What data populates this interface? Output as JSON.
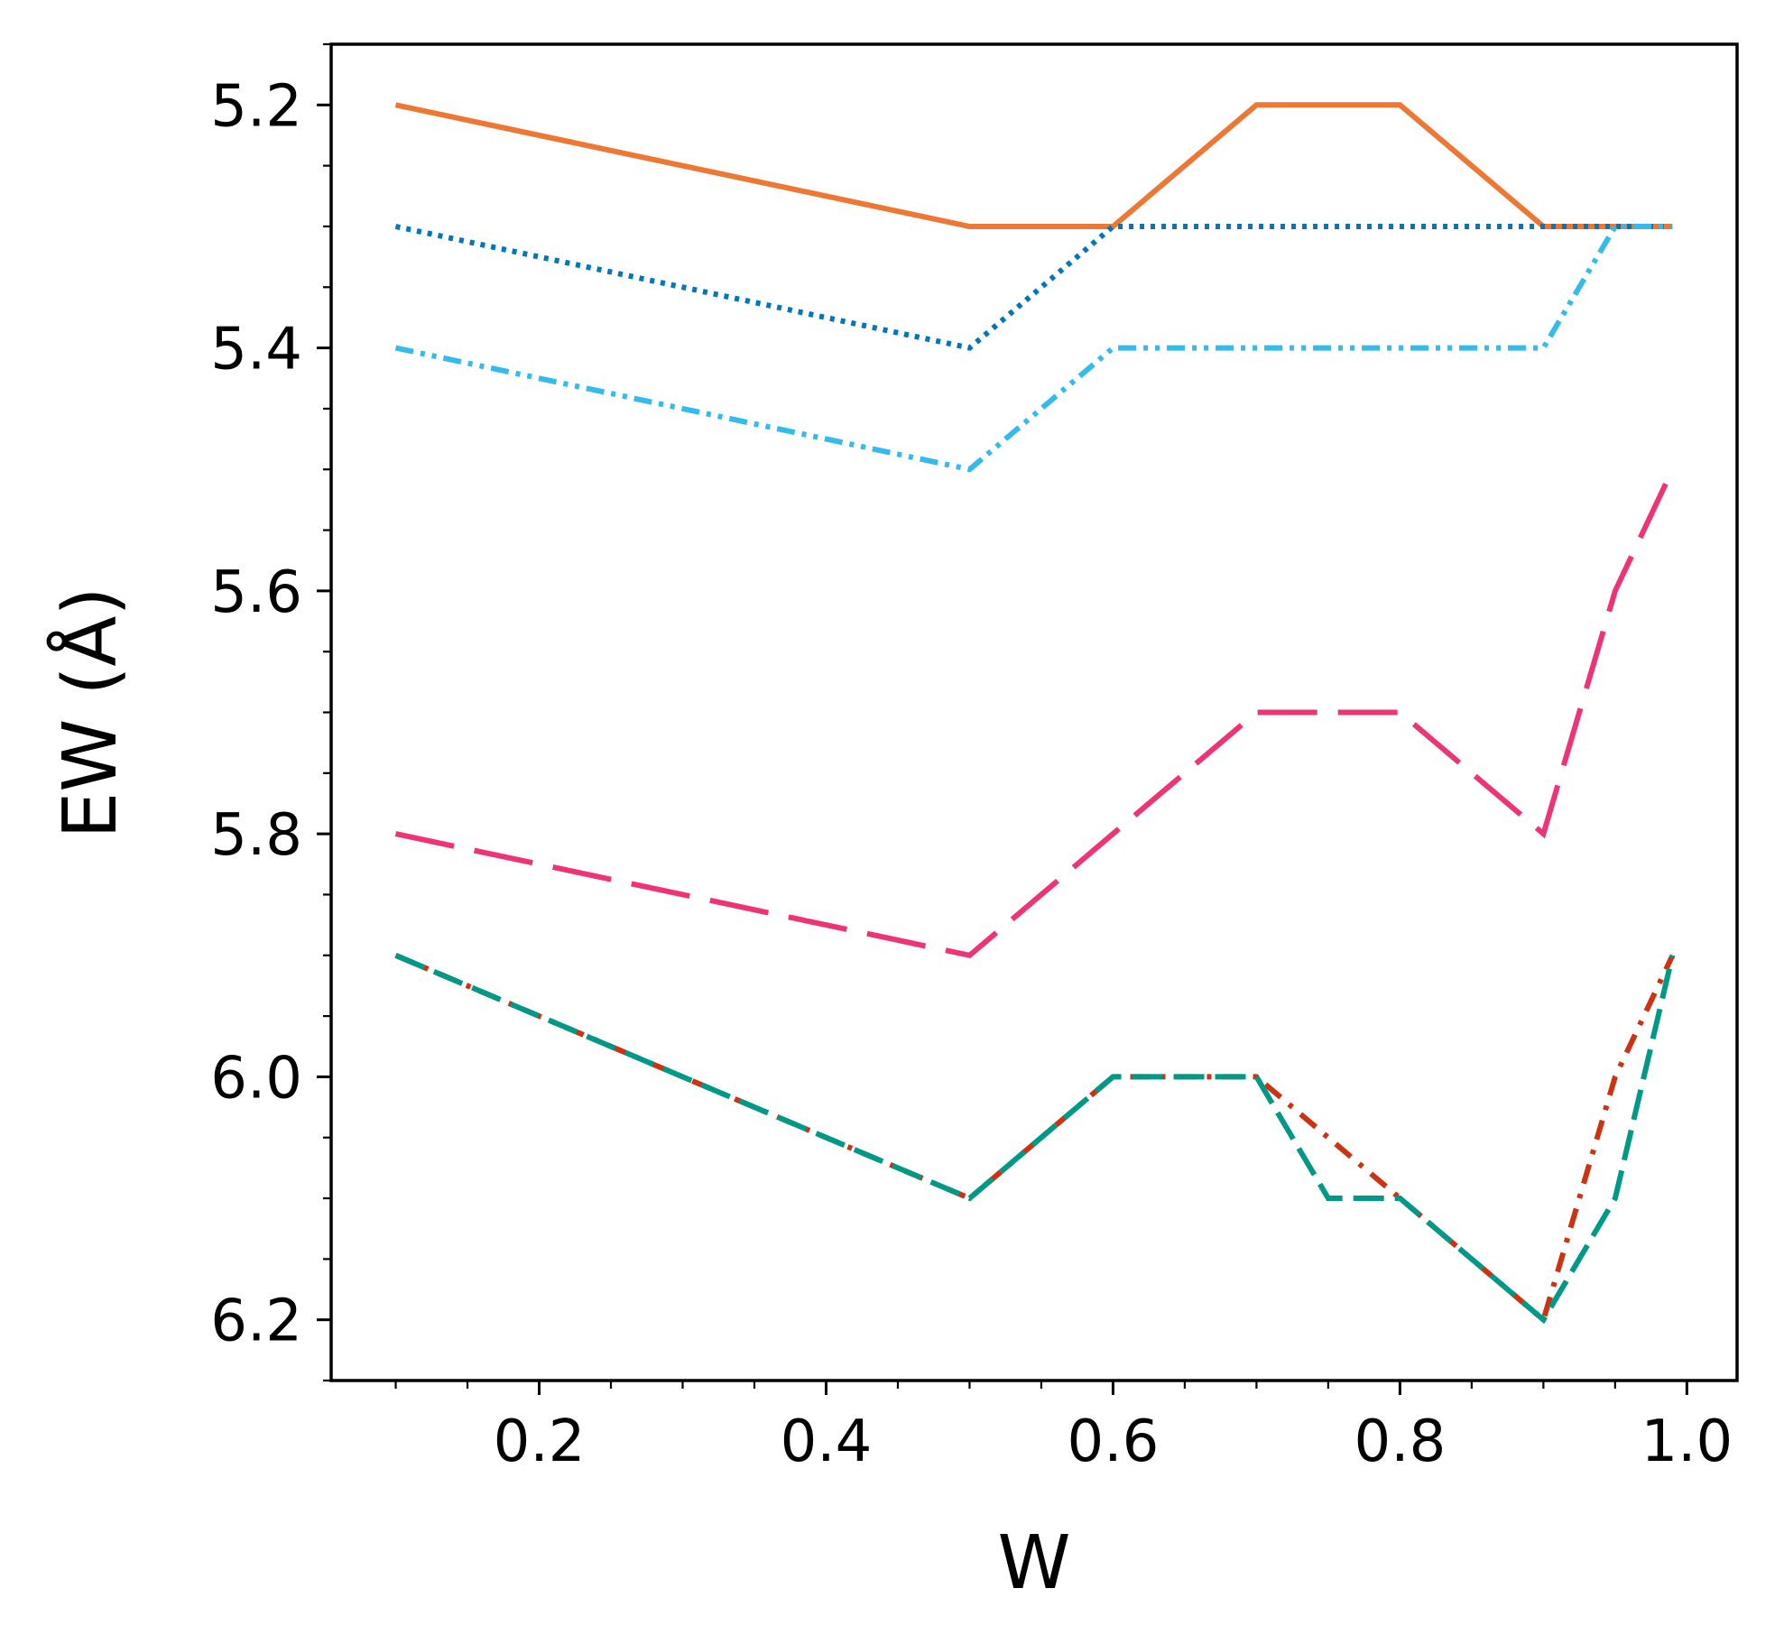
{
  "chart_data": {
    "type": "line",
    "title": "",
    "xlabel": "W",
    "ylabel": "EW (Å)",
    "xlim": [
      0.055,
      1.035
    ],
    "ylim": [
      6.25,
      5.15
    ],
    "y_inverted": true,
    "grid": false,
    "legend": "none",
    "x_ticks": [
      {
        "value": 0.2,
        "label": "0.2"
      },
      {
        "value": 0.4,
        "label": "0.4"
      },
      {
        "value": 0.6,
        "label": "0.6"
      },
      {
        "value": 0.8,
        "label": "0.8"
      },
      {
        "value": 1.0,
        "label": "1.0"
      }
    ],
    "y_ticks": [
      {
        "value": 5.2,
        "label": "5.2"
      },
      {
        "value": 5.4,
        "label": "5.4"
      },
      {
        "value": 5.6,
        "label": "5.6"
      },
      {
        "value": 5.8,
        "label": "5.8"
      },
      {
        "value": 6.0,
        "label": "6.0"
      },
      {
        "value": 6.2,
        "label": "6.2"
      }
    ],
    "x_minor_ticks": [
      0.1,
      0.15,
      0.25,
      0.3,
      0.35,
      0.45,
      0.5,
      0.55,
      0.65,
      0.7,
      0.75,
      0.85,
      0.9,
      0.95
    ],
    "y_minor_ticks": [
      5.15,
      5.25,
      5.3,
      5.35,
      5.45,
      5.5,
      5.55,
      5.65,
      5.7,
      5.75,
      5.85,
      5.9,
      5.95,
      6.05,
      6.1,
      6.15,
      6.25
    ],
    "series": [
      {
        "color": "#EE7733",
        "style": "solid",
        "x": [
          0.1,
          0.5,
          0.6,
          0.7,
          0.8,
          0.9,
          0.95,
          0.99
        ],
        "y": [
          5.2,
          5.3,
          5.3,
          5.2,
          5.2,
          5.3,
          5.3,
          5.3
        ]
      },
      {
        "color": "#0077BB",
        "style": "dotted",
        "x": [
          0.1,
          0.5,
          0.6,
          0.7,
          0.8,
          0.9,
          0.95,
          0.99
        ],
        "y": [
          5.3,
          5.4,
          5.3,
          5.3,
          5.3,
          5.3,
          5.3,
          5.3
        ]
      },
      {
        "color": "#33BBEE",
        "style": "dash-dot-dot",
        "x": [
          0.1,
          0.5,
          0.6,
          0.7,
          0.8,
          0.9,
          0.95,
          0.99
        ],
        "y": [
          5.4,
          5.5,
          5.4,
          5.4,
          5.4,
          5.4,
          5.3,
          5.3
        ]
      },
      {
        "color": "#EE3377",
        "style": "long-dash",
        "x": [
          0.1,
          0.5,
          0.6,
          0.7,
          0.8,
          0.9,
          0.95,
          0.99
        ],
        "y": [
          5.8,
          5.9,
          5.8,
          5.7,
          5.7,
          5.8,
          5.6,
          5.5
        ]
      },
      {
        "color": "#CC3311",
        "style": "dash-dot",
        "x": [
          0.1,
          0.5,
          0.6,
          0.7,
          0.8,
          0.9,
          0.95,
          0.99
        ],
        "y": [
          5.9,
          6.1,
          6.0,
          6.0,
          6.1,
          6.2,
          6.0,
          5.9
        ]
      },
      {
        "color": "#009988",
        "style": "dashed",
        "x": [
          0.1,
          0.5,
          0.6,
          0.7,
          0.75,
          0.8,
          0.9,
          0.95,
          0.99
        ],
        "y": [
          5.9,
          6.1,
          6.0,
          6.0,
          6.1,
          6.1,
          6.2,
          6.1,
          5.9
        ]
      }
    ]
  }
}
